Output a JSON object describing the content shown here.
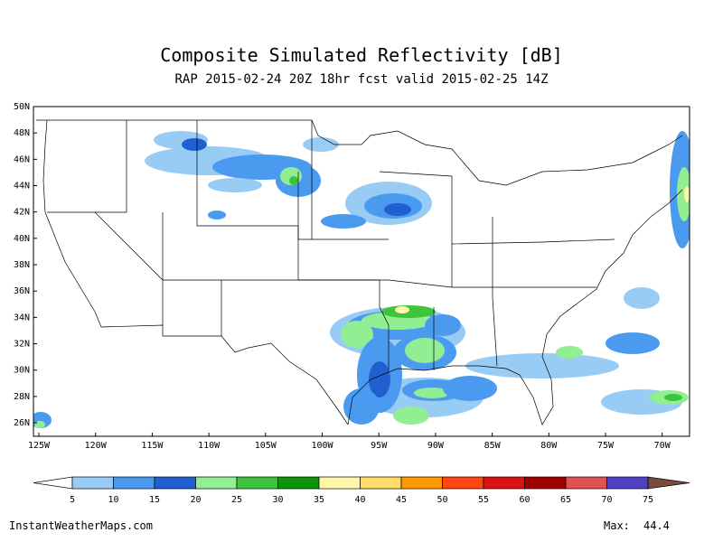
{
  "title": "Composite Simulated Reflectivity [dB]",
  "subtitle": "RAP 2015-02-24 20Z 18hr fcst valid 2015-02-25 14Z",
  "map": {
    "lat_labels": [
      "50N",
      "48N",
      "46N",
      "44N",
      "42N",
      "40N",
      "38N",
      "36N",
      "34N",
      "32N",
      "30N",
      "28N",
      "26N"
    ],
    "lon_labels": [
      "125W",
      "120W",
      "115W",
      "110W",
      "105W",
      "100W",
      "95W",
      "90W",
      "85W",
      "80W",
      "75W",
      "70W"
    ]
  },
  "colorbar": {
    "labels": [
      "5",
      "10",
      "15",
      "20",
      "25",
      "30",
      "35",
      "40",
      "45",
      "50",
      "55",
      "60",
      "65",
      "70",
      "75"
    ],
    "colors": [
      "#ffffff",
      "#99ccf5",
      "#4a9bef",
      "#1f5fcf",
      "#92ee92",
      "#3cc43c",
      "#0b960b",
      "#fff6a8",
      "#ffdc6a",
      "#ff9a00",
      "#ff4512",
      "#dc1212",
      "#a00000",
      "#e05252",
      "#5040c8",
      "#7a4a3a"
    ]
  },
  "footer": {
    "site": "InstantWeatherMaps.com",
    "max_label": "Max:",
    "max_value": "44.4"
  }
}
